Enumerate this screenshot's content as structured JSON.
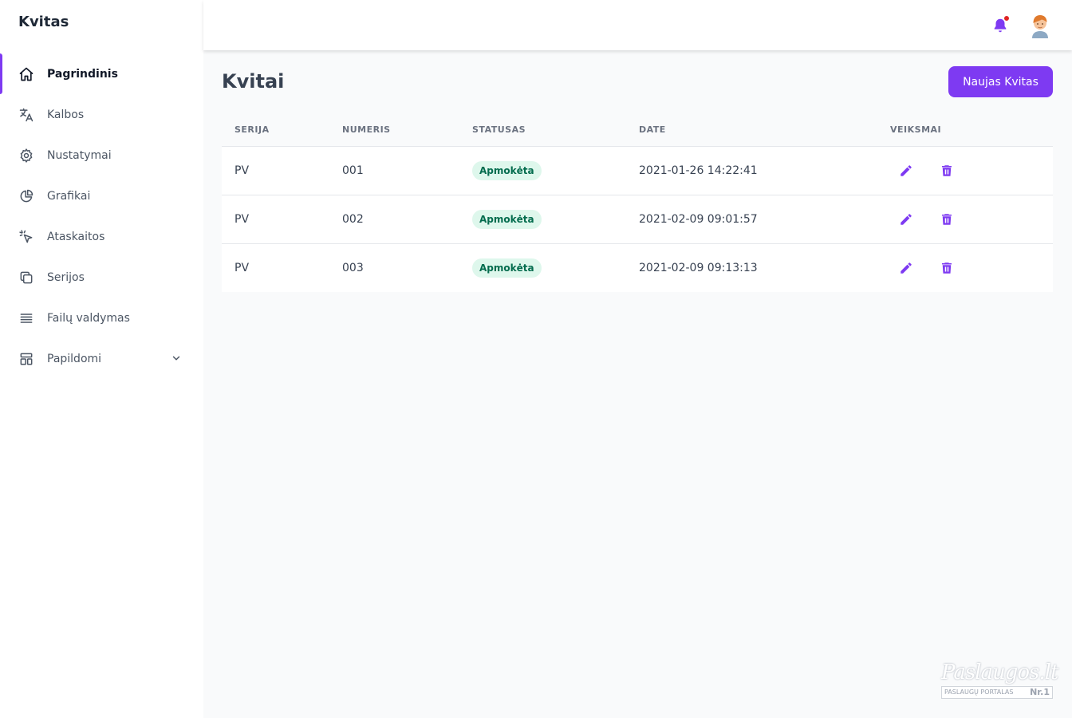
{
  "app": {
    "brand": "Kvitas"
  },
  "sidebar": {
    "items": [
      {
        "label": "Pagrindinis",
        "icon": "home-icon",
        "active": true
      },
      {
        "label": "Kalbos",
        "icon": "translate-icon"
      },
      {
        "label": "Nustatymai",
        "icon": "gear-icon"
      },
      {
        "label": "Grafikai",
        "icon": "pie-chart-icon"
      },
      {
        "label": "Ataskaitos",
        "icon": "cursor-click-icon"
      },
      {
        "label": "Serijos",
        "icon": "copy-icon"
      },
      {
        "label": "Failų valdymas",
        "icon": "list-icon"
      },
      {
        "label": "Papildomi",
        "icon": "template-icon",
        "has_submenu": true
      }
    ]
  },
  "header": {
    "notifications_icon": "bell-icon",
    "avatar_icon": "avatar-icon"
  },
  "main": {
    "title": "Kvitai",
    "new_button": "Naujas Kvitas",
    "table": {
      "headers": {
        "serija": "SERIJA",
        "numeris": "NUMERIS",
        "statusas": "STATUSAS",
        "date": "DATE",
        "veiksmai": "VEIKSMAI"
      },
      "rows": [
        {
          "serija": "PV",
          "numeris": "001",
          "statusas": "Apmokėta",
          "date": "2021-01-26 14:22:41"
        },
        {
          "serija": "PV",
          "numeris": "002",
          "statusas": "Apmokėta",
          "date": "2021-02-09 09:01:57"
        },
        {
          "serija": "PV",
          "numeris": "003",
          "statusas": "Apmokėta",
          "date": "2021-02-09 09:13:13"
        }
      ]
    }
  },
  "watermark": {
    "title": "Paslaugos.lt",
    "subtitle": "PASLAUGŲ PORTALAS",
    "badge": "Nr.1"
  },
  "colors": {
    "accent": "#7e3af2",
    "badge_bg": "#def7ec",
    "badge_text": "#046c4e",
    "notification_dot": "#e02424"
  }
}
